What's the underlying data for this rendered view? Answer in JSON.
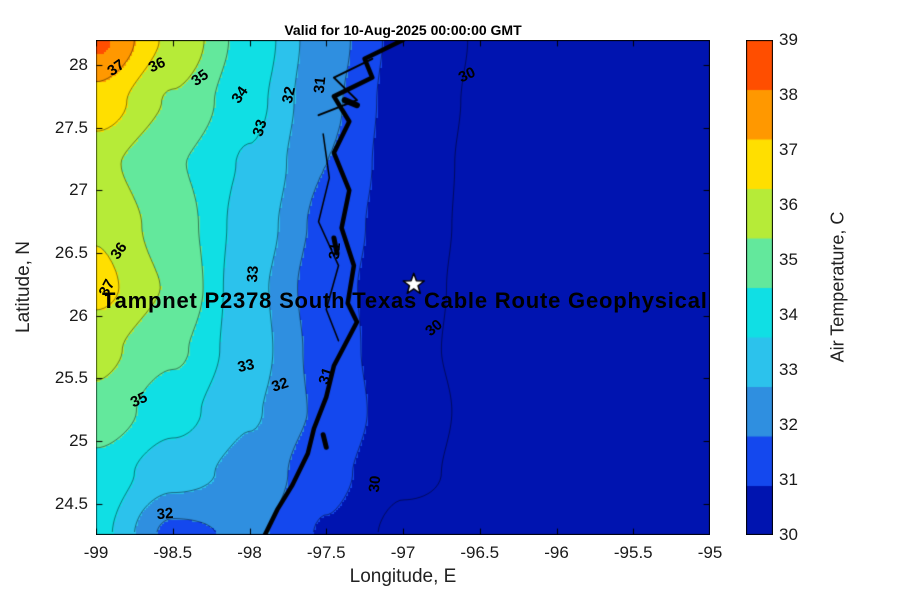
{
  "title": "Valid for 10-Aug-2025 00:00:00 GMT",
  "overlay_text": "Tampnet P2378 South Texas Cable Route Geophysical",
  "axes": {
    "xlabel": "Longitude, E",
    "ylabel": "Latitude, N",
    "xlim": [
      -99,
      -95
    ],
    "ylim": [
      24.25,
      28.2
    ],
    "xticks": [
      -99,
      -98.5,
      -98,
      -97.5,
      -97,
      -96.5,
      -96,
      -95.5,
      -95
    ],
    "yticks": [
      24.5,
      25,
      25.5,
      26,
      26.5,
      27,
      27.5,
      28
    ]
  },
  "colorbar": {
    "label": "Air Temperature, C",
    "range": [
      30,
      39
    ],
    "ticks": [
      30,
      31,
      32,
      33,
      34,
      35,
      36,
      37,
      38,
      39
    ],
    "colors": [
      "#0014b0",
      "#1448ee",
      "#2f8fe0",
      "#2cc2ec",
      "#10dfe4",
      "#63e89c",
      "#b6eb38",
      "#ffdf00",
      "#ff9800",
      "#ff4e00"
    ]
  },
  "chart_data": {
    "type": "heatmap",
    "units": "C",
    "x": [
      -99,
      -98.5,
      -98,
      -97.5,
      -97,
      -96.5,
      -96,
      -95.5,
      -95
    ],
    "y": [
      28.2,
      27.71,
      27.21,
      26.72,
      26.23,
      25.73,
      25.24,
      24.74,
      24.25
    ],
    "values": [
      [
        39.2,
        36.8,
        34.6,
        32.4,
        30.7,
        29.95,
        29.75,
        29.65,
        29.6
      ],
      [
        37.6,
        35.9,
        34.3,
        32.2,
        30.55,
        29.9,
        29.7,
        29.6,
        29.6
      ],
      [
        36.3,
        35.1,
        33.9,
        32.0,
        30.45,
        29.85,
        29.7,
        29.6,
        29.55
      ],
      [
        36.9,
        35.5,
        33.6,
        31.7,
        30.35,
        29.85,
        29.65,
        29.6,
        29.55
      ],
      [
        37.3,
        35.9,
        33.3,
        31.4,
        30.3,
        29.8,
        29.65,
        29.6,
        29.55
      ],
      [
        36.3,
        35.2,
        33.4,
        31.6,
        30.2,
        29.8,
        29.65,
        29.6,
        29.55
      ],
      [
        35.7,
        34.4,
        33.1,
        31.8,
        30.35,
        29.85,
        29.7,
        29.6,
        29.55
      ],
      [
        34.6,
        33.4,
        32.7,
        31.3,
        30.2,
        29.8,
        29.65,
        29.6,
        29.55
      ],
      [
        34.3,
        31.7,
        32.2,
        30.9,
        29.7,
        29.75,
        29.6,
        29.55,
        29.5
      ]
    ],
    "contour_levels": [
      30,
      31,
      32,
      33,
      34,
      35,
      36,
      37,
      38
    ]
  },
  "contour_labels": [
    {
      "v": "37",
      "lon": -98.87,
      "lat": 27.98,
      "rot": -35
    },
    {
      "v": "36",
      "lon": -98.6,
      "lat": 28.0,
      "rot": -25
    },
    {
      "v": "35",
      "lon": -98.32,
      "lat": 27.9,
      "rot": -35
    },
    {
      "v": "34",
      "lon": -98.06,
      "lat": 27.76,
      "rot": -55
    },
    {
      "v": "33",
      "lon": -97.93,
      "lat": 27.5,
      "rot": -72
    },
    {
      "v": "32",
      "lon": -97.74,
      "lat": 27.76,
      "rot": -78
    },
    {
      "v": "31",
      "lon": -97.54,
      "lat": 27.84,
      "rot": -84
    },
    {
      "v": "30",
      "lon": -96.58,
      "lat": 27.92,
      "rot": -25
    },
    {
      "v": "36",
      "lon": -98.85,
      "lat": 26.52,
      "rot": -55
    },
    {
      "v": "37",
      "lon": -98.93,
      "lat": 26.22,
      "rot": -62
    },
    {
      "v": "33",
      "lon": -97.98,
      "lat": 26.33,
      "rot": -86
    },
    {
      "v": "31",
      "lon": -97.44,
      "lat": 26.52,
      "rot": -86
    },
    {
      "v": "31",
      "lon": -97.5,
      "lat": 25.52,
      "rot": -72
    },
    {
      "v": "30",
      "lon": -96.8,
      "lat": 25.9,
      "rot": -40
    },
    {
      "v": "33",
      "lon": -98.02,
      "lat": 25.6,
      "rot": -12
    },
    {
      "v": "32",
      "lon": -97.8,
      "lat": 25.45,
      "rot": -18
    },
    {
      "v": "35",
      "lon": -98.72,
      "lat": 25.33,
      "rot": -25
    },
    {
      "v": "30",
      "lon": -97.18,
      "lat": 24.66,
      "rot": -84
    },
    {
      "v": "32",
      "lon": -98.55,
      "lat": 24.42,
      "rot": -5
    }
  ],
  "coastline": [
    {
      "width": 4.5,
      "pts": [
        [
          -97.0,
          28.2
        ],
        [
          -97.25,
          28.05
        ],
        [
          -97.2,
          27.9
        ],
        [
          -97.45,
          27.75
        ],
        [
          -97.35,
          27.55
        ],
        [
          -97.45,
          27.3
        ],
        [
          -97.35,
          27.0
        ],
        [
          -97.4,
          26.7
        ],
        [
          -97.32,
          26.4
        ],
        [
          -97.36,
          26.1
        ],
        [
          -97.3,
          25.95
        ],
        [
          -97.45,
          25.6
        ],
        [
          -97.5,
          25.35
        ],
        [
          -97.58,
          25.1
        ],
        [
          -97.62,
          24.9
        ],
        [
          -97.72,
          24.65
        ],
        [
          -97.82,
          24.45
        ],
        [
          -97.9,
          24.25
        ]
      ]
    },
    {
      "width": 1.5,
      "pts": [
        [
          -97.52,
          27.45
        ],
        [
          -97.48,
          27.1
        ],
        [
          -97.55,
          26.75
        ],
        [
          -97.42,
          26.4
        ],
        [
          -97.5,
          26.05
        ],
        [
          -97.42,
          25.8
        ]
      ]
    },
    {
      "width": 2,
      "pts": [
        [
          -97.2,
          28.05
        ],
        [
          -97.45,
          27.9
        ],
        [
          -97.3,
          27.72
        ],
        [
          -97.55,
          27.6
        ]
      ]
    },
    {
      "width": 6,
      "pts": [
        [
          -97.38,
          27.72
        ],
        [
          -97.3,
          27.68
        ]
      ]
    },
    {
      "width": 5,
      "pts": [
        [
          -97.45,
          26.62
        ],
        [
          -97.43,
          26.5
        ]
      ]
    },
    {
      "width": 5,
      "pts": [
        [
          -97.52,
          25.05
        ],
        [
          -97.5,
          24.95
        ]
      ]
    }
  ],
  "marker": {
    "shape": "star",
    "lon": -96.93,
    "lat": 26.25,
    "fill": "#ffffff",
    "edge": "#000000"
  }
}
